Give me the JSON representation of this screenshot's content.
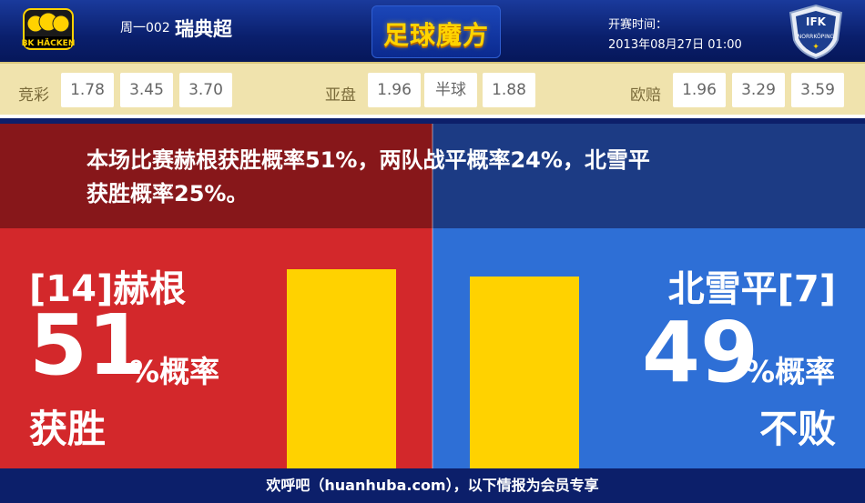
{
  "header": {
    "match_no": "周一002",
    "league": "瑞典超",
    "logo_text": "足球魔方",
    "kickoff_label": "开赛时间：",
    "kickoff_time": "2013年08月27日 01:00",
    "home_badge": {
      "icon": "bk-hacken-badge-icon",
      "text": "BK HÄCKEN"
    },
    "away_badge": {
      "icon": "ifk-norrkoping-badge-icon",
      "text": "IFK",
      "subtext": "NORRKÖPING"
    }
  },
  "odds": {
    "jingcai": {
      "label": "竞彩",
      "values": [
        "1.78",
        "3.45",
        "3.70"
      ]
    },
    "yapan": {
      "label": "亚盘",
      "values": [
        "1.96",
        "半球",
        "1.88"
      ]
    },
    "oupei": {
      "label": "欧赔",
      "values": [
        "1.96",
        "3.29",
        "3.59"
      ]
    }
  },
  "summary": {
    "line1": "本场比赛赫根获胜概率51%，两队战平概率24%，北雪平",
    "line2": "获胜概率25%。"
  },
  "home": {
    "name": "[14]赫根",
    "percent": "51",
    "unit": "%概率",
    "result": "获胜",
    "bar_value": 51,
    "color": "#d3282b"
  },
  "away": {
    "name": "北雪平[7]",
    "percent": "49",
    "unit": "%概率",
    "result": "不败",
    "bar_value": 49,
    "color": "#2e6fd6"
  },
  "accent_color": "#ffd200",
  "footer": {
    "text": "欢呼吧（huanhuba.com），以下情报为会员专享"
  }
}
